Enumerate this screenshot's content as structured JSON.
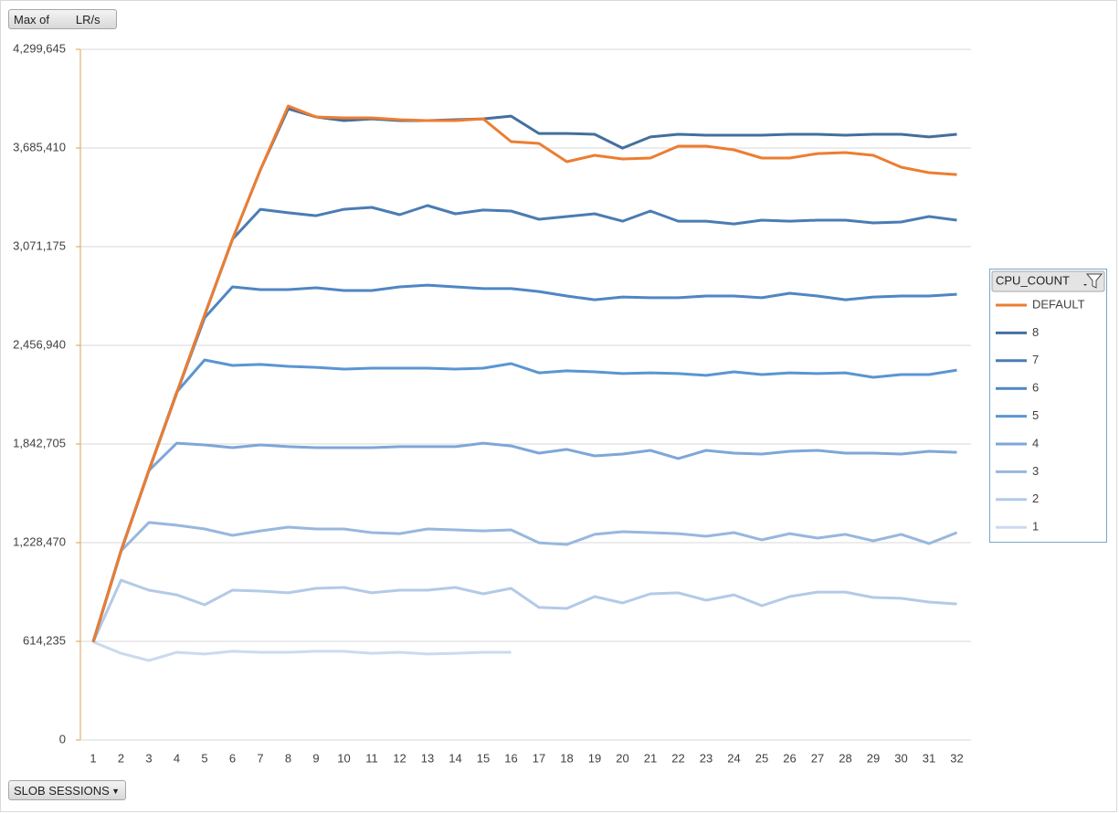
{
  "chart_data": {
    "type": "line",
    "value_field_button": "Max of        LR/s",
    "axis_field_button": "SLOB SESSIONS",
    "legend_title": "CPU_COUNT",
    "categories": [
      "1",
      "2",
      "3",
      "4",
      "5",
      "6",
      "7",
      "8",
      "9",
      "10",
      "11",
      "12",
      "13",
      "14",
      "15",
      "16",
      "17",
      "18",
      "19",
      "20",
      "21",
      "22",
      "23",
      "24",
      "25",
      "26",
      "27",
      "28",
      "29",
      "30",
      "31",
      "32"
    ],
    "ylim": [
      0,
      4299645
    ],
    "yticks": [
      0,
      {
        "value": 614235,
        "label": "614,235"
      },
      {
        "value": 1228470,
        "label": "1,228,470"
      },
      {
        "value": 1842705,
        "label": "1,842,705"
      },
      {
        "value": 2456940,
        "label": "2,456,940"
      },
      {
        "value": 3071175,
        "label": "3,071,175"
      },
      {
        "value": 3685410,
        "label": "3,685,410"
      },
      {
        "value": 4299645,
        "label": "4,299,645"
      }
    ],
    "grid": true,
    "legend_position": "right",
    "series": [
      {
        "name": "DEFAULT",
        "color": "#ed7d31",
        "values": [
          610000,
          1177000,
          1678000,
          2161000,
          2645000,
          3117000,
          3549000,
          3947000,
          3879000,
          3873000,
          3873000,
          3862000,
          3856000,
          3856000,
          3867000,
          3725000,
          3714000,
          3600000,
          3640000,
          3617000,
          3623000,
          3697000,
          3697000,
          3674000,
          3623000,
          3623000,
          3651000,
          3657000,
          3640000,
          3566000,
          3532000,
          3520000
        ]
      },
      {
        "name": "8",
        "color": "#43709c",
        "values": [
          610000,
          1177000,
          1678000,
          2161000,
          2645000,
          3117000,
          3549000,
          3930000,
          3879000,
          3856000,
          3867000,
          3856000,
          3856000,
          3862000,
          3867000,
          3884000,
          3776000,
          3776000,
          3771000,
          3685000,
          3754000,
          3771000,
          3765000,
          3765000,
          3765000,
          3771000,
          3771000,
          3765000,
          3771000,
          3771000,
          3754000,
          3771000
        ]
      },
      {
        "name": "7",
        "color": "#4a7cb3",
        "values": [
          610000,
          1177000,
          1678000,
          2161000,
          2645000,
          3117000,
          3304000,
          3282000,
          3264000,
          3304000,
          3316000,
          3270000,
          3327000,
          3276000,
          3299000,
          3293000,
          3242000,
          3259000,
          3276000,
          3230000,
          3293000,
          3230000,
          3230000,
          3213000,
          3236000,
          3230000,
          3236000,
          3236000,
          3219000,
          3225000,
          3259000,
          3236000
        ]
      },
      {
        "name": "6",
        "color": "#4f86c3",
        "values": [
          610000,
          1177000,
          1678000,
          2161000,
          2628000,
          2821000,
          2804000,
          2804000,
          2815000,
          2798000,
          2798000,
          2821000,
          2832000,
          2821000,
          2810000,
          2810000,
          2792000,
          2764000,
          2741000,
          2758000,
          2753000,
          2753000,
          2764000,
          2764000,
          2753000,
          2781000,
          2764000,
          2741000,
          2758000,
          2764000,
          2764000,
          2775000
        ]
      },
      {
        "name": "5",
        "color": "#5b95d2",
        "values": [
          610000,
          1177000,
          1678000,
          2167000,
          2366000,
          2332000,
          2338000,
          2326000,
          2320000,
          2309000,
          2315000,
          2315000,
          2315000,
          2309000,
          2315000,
          2343000,
          2286000,
          2298000,
          2292000,
          2281000,
          2286000,
          2281000,
          2270000,
          2292000,
          2275000,
          2286000,
          2281000,
          2286000,
          2258000,
          2275000,
          2275000,
          2303000
        ]
      },
      {
        "name": "4",
        "color": "#7fa6d8",
        "values": [
          610000,
          1177000,
          1678000,
          1848000,
          1837000,
          1820000,
          1837000,
          1826000,
          1820000,
          1820000,
          1820000,
          1826000,
          1826000,
          1826000,
          1848000,
          1831000,
          1786000,
          1809000,
          1769000,
          1780000,
          1803000,
          1752000,
          1803000,
          1786000,
          1780000,
          1797000,
          1803000,
          1786000,
          1786000,
          1780000,
          1797000,
          1791000
        ]
      },
      {
        "name": "3",
        "color": "#98b7de",
        "values": [
          610000,
          1177000,
          1354000,
          1337000,
          1314000,
          1274000,
          1302000,
          1325000,
          1314000,
          1314000,
          1291000,
          1285000,
          1314000,
          1308000,
          1302000,
          1308000,
          1228000,
          1217000,
          1280000,
          1297000,
          1291000,
          1285000,
          1268000,
          1291000,
          1246000,
          1285000,
          1257000,
          1280000,
          1240000,
          1280000,
          1223000,
          1291000
        ]
      },
      {
        "name": "2",
        "color": "#b3cae7",
        "values": [
          610000,
          995000,
          933000,
          904000,
          842000,
          933000,
          927000,
          916000,
          944000,
          950000,
          916000,
          933000,
          933000,
          950000,
          910000,
          944000,
          825000,
          819000,
          893000,
          853000,
          910000,
          916000,
          870000,
          904000,
          836000,
          893000,
          921000,
          921000,
          887000,
          882000,
          859000,
          847000
        ]
      },
      {
        "name": "1",
        "color": "#cbdaef",
        "values": [
          610000,
          540000,
          495000,
          546000,
          535000,
          552000,
          546000,
          546000,
          552000,
          552000,
          540000,
          546000,
          535000,
          540000,
          546000,
          546000,
          null,
          null,
          null,
          null,
          null,
          null,
          null,
          null,
          null,
          null,
          null,
          null,
          null,
          null,
          null,
          null
        ]
      }
    ]
  }
}
